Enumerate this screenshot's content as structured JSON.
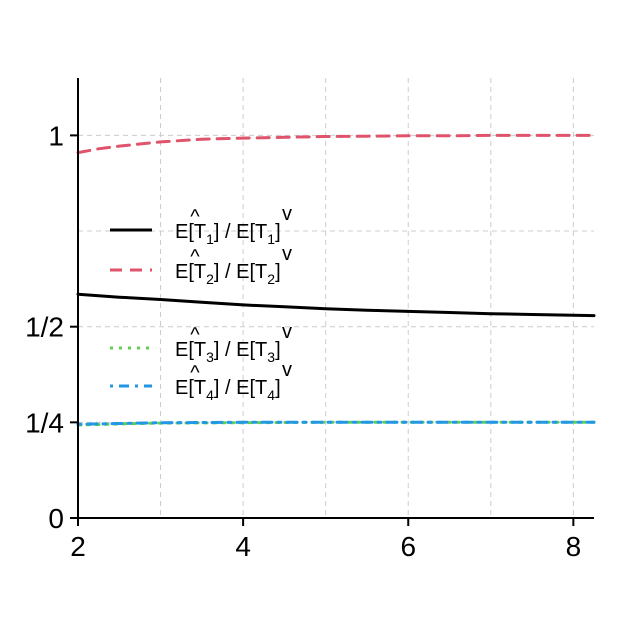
{
  "chart_data": {
    "type": "line",
    "title": "",
    "xlabel": "",
    "ylabel": "",
    "xlim": [
      2,
      8.25
    ],
    "ylim": [
      0,
      1.15
    ],
    "grid": true,
    "legend_placement": "center-left",
    "x_ticks": [
      {
        "value": 2,
        "label": "2"
      },
      {
        "value": 4,
        "label": "4"
      },
      {
        "value": 6,
        "label": "6"
      },
      {
        "value": 8,
        "label": "8"
      }
    ],
    "y_ticks": [
      {
        "value": 0,
        "label": "0"
      },
      {
        "value": 0.25,
        "label": "1/4"
      },
      {
        "value": 0.5,
        "label": "1/2"
      },
      {
        "value": 1,
        "label": "1"
      }
    ],
    "x_grid": [
      2,
      3,
      4,
      5,
      6,
      7,
      8
    ],
    "y_grid": [
      0.25,
      0.5,
      0.75,
      1
    ],
    "series": [
      {
        "legend_label": "E[T̂1] / E[Tˇ1]",
        "base": "E[T",
        "sub": "1",
        "mid": "] / E[T",
        "sub2": "1",
        "end": "]",
        "color": "#000000",
        "dash": "none",
        "x": [
          2,
          2.5,
          3,
          3.5,
          4,
          4.5,
          5,
          5.5,
          6,
          6.5,
          7,
          7.5,
          8,
          8.25
        ],
        "y": [
          0.585,
          0.577,
          0.571,
          0.564,
          0.557,
          0.552,
          0.547,
          0.543,
          0.54,
          0.537,
          0.534,
          0.532,
          0.53,
          0.529
        ]
      },
      {
        "base": "E[T",
        "sub": "2",
        "mid": "] / E[T",
        "sub2": "2",
        "end": "]",
        "color": "#DF536B",
        "dash": "12,8",
        "x": [
          2,
          2.25,
          2.5,
          3,
          3.5,
          4,
          4.5,
          5,
          5.5,
          6,
          6.5,
          7,
          7.5,
          8,
          8.25
        ],
        "y": [
          0.955,
          0.965,
          0.972,
          0.983,
          0.99,
          0.993,
          0.995,
          0.997,
          0.998,
          0.999,
          0.999,
          1.0,
          1.0,
          1.0,
          1.0
        ]
      },
      {
        "base": "E[T",
        "sub": "3",
        "mid": "] / E[T",
        "sub2": "3",
        "end": "]",
        "color": "#61D04F",
        "dash": "3,6",
        "x": [
          2,
          2.5,
          3,
          4,
          5,
          6,
          7,
          8,
          8.25
        ],
        "y": [
          0.243,
          0.246,
          0.248,
          0.249,
          0.25,
          0.25,
          0.25,
          0.25,
          0.25
        ]
      },
      {
        "base": "E[T",
        "sub": "4",
        "mid": "] / E[T",
        "sub2": "4",
        "end": "]",
        "color": "#2297E6",
        "dash": "3,6,10,6",
        "x": [
          2,
          2.5,
          3,
          4,
          5,
          6,
          7,
          8,
          8.25
        ],
        "y": [
          0.245,
          0.247,
          0.249,
          0.25,
          0.25,
          0.25,
          0.25,
          0.25,
          0.25
        ]
      }
    ]
  }
}
